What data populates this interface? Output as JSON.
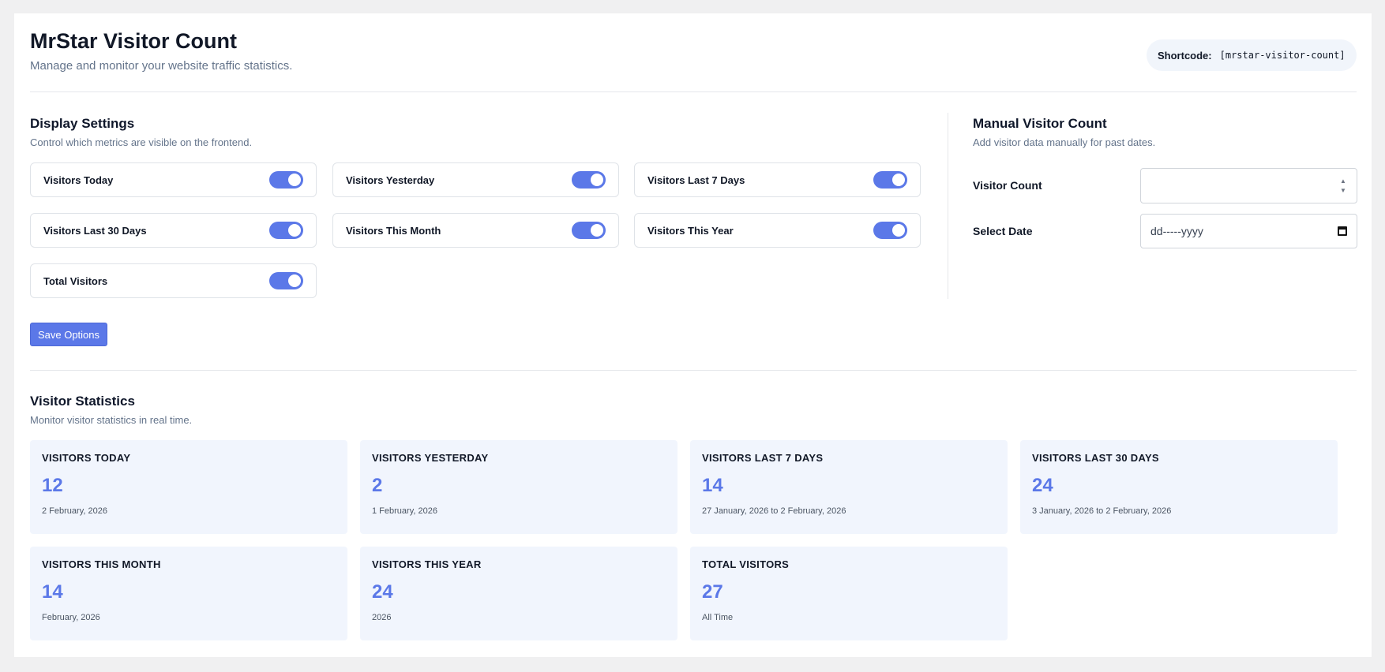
{
  "header": {
    "title": "MrStar Visitor Count",
    "subtitle": "Manage and monitor your website traffic statistics.",
    "shortcode_label": "Shortcode:",
    "shortcode_value": "[mrstar-visitor-count]"
  },
  "display_settings": {
    "title": "Display Settings",
    "description": "Control which metrics are visible on the frontend.",
    "toggles": [
      {
        "label": "Visitors Today",
        "enabled": true
      },
      {
        "label": "Visitors Yesterday",
        "enabled": true
      },
      {
        "label": "Visitors Last 7 Days",
        "enabled": true
      },
      {
        "label": "Visitors Last 30 Days",
        "enabled": true
      },
      {
        "label": "Visitors This Month",
        "enabled": true
      },
      {
        "label": "Visitors This Year",
        "enabled": true
      },
      {
        "label": "Total Visitors",
        "enabled": true
      }
    ],
    "save_label": "Save Options"
  },
  "manual_count": {
    "title": "Manual Visitor Count",
    "description": "Add visitor data manually for past dates.",
    "count_label": "Visitor Count",
    "count_value": "",
    "date_label": "Select Date",
    "date_placeholder": "dd-----yyyy"
  },
  "statistics": {
    "title": "Visitor Statistics",
    "description": "Monitor visitor statistics in real time.",
    "cards": [
      {
        "label": "VISITORS TODAY",
        "value": "12",
        "date": "2 February, 2026"
      },
      {
        "label": "VISITORS YESTERDAY",
        "value": "2",
        "date": "1 February, 2026"
      },
      {
        "label": "VISITORS LAST 7 DAYS",
        "value": "14",
        "date": "27 January, 2026 to 2 February, 2026"
      },
      {
        "label": "VISITORS LAST 30 DAYS",
        "value": "24",
        "date": "3 January, 2026 to 2 February, 2026"
      },
      {
        "label": "VISITORS THIS MONTH",
        "value": "14",
        "date": "February, 2026"
      },
      {
        "label": "VISITORS THIS YEAR",
        "value": "24",
        "date": "2026"
      },
      {
        "label": "TOTAL VISITORS",
        "value": "27",
        "date": "All Time"
      }
    ]
  },
  "colors": {
    "accent": "#5b78e8",
    "card_bg": "#f1f5fd",
    "page_bg": "#f0f0f1"
  }
}
